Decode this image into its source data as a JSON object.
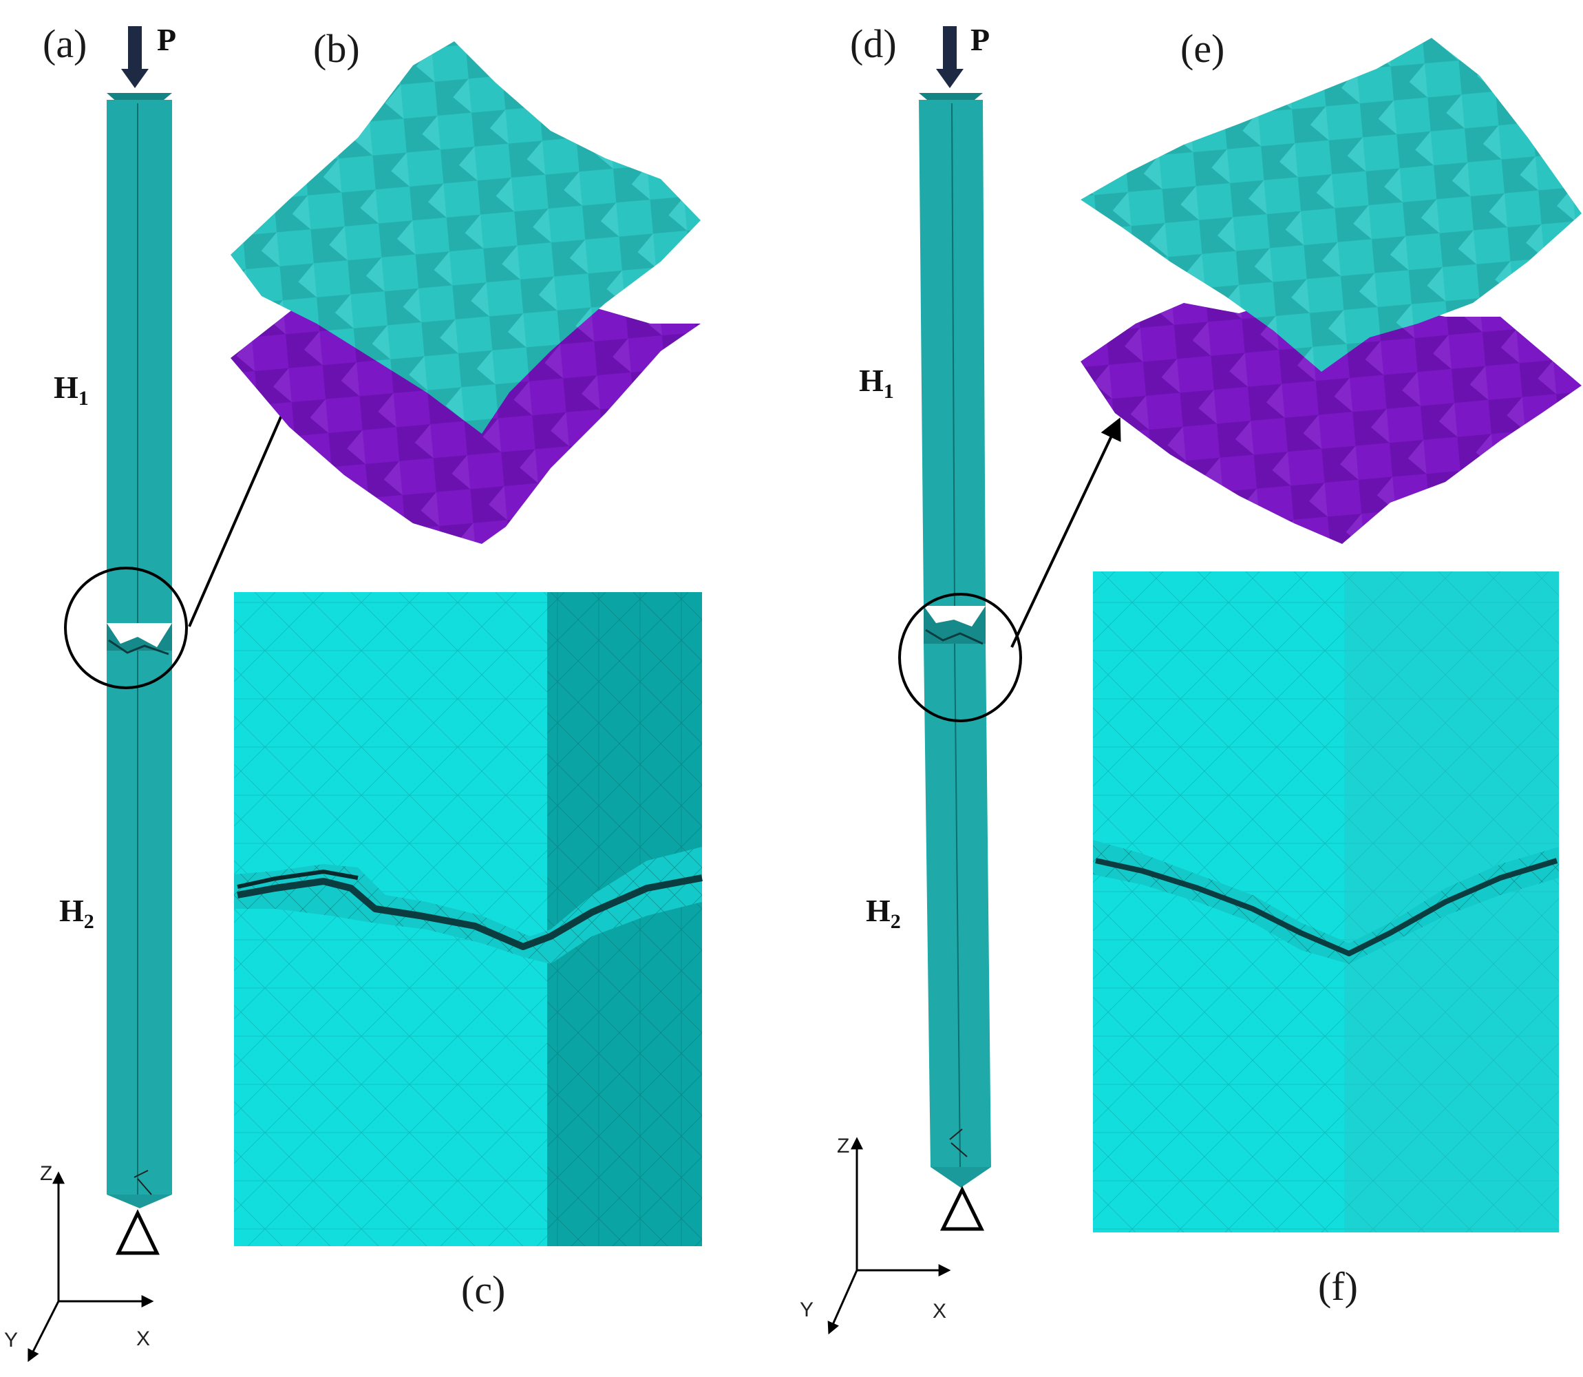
{
  "panels": {
    "a": {
      "label": "(a)",
      "load": "P",
      "h1": "H",
      "h1_sub": "1",
      "h2": "H",
      "h2_sub": "2"
    },
    "b": {
      "label": "(b)"
    },
    "c": {
      "label": "(c)"
    },
    "d": {
      "label": "(d)",
      "load": "P",
      "h1": "H",
      "h1_sub": "1",
      "h2": "H",
      "h2_sub": "2"
    },
    "e": {
      "label": "(e)"
    },
    "f": {
      "label": "(f)"
    }
  },
  "axes": {
    "z": "Z",
    "x": "X",
    "y": "Y"
  },
  "colors": {
    "column": "#1fa9a9",
    "column_shadow": "#168a8a",
    "surface_top": "#2cc6c2",
    "surface_bottom": "#7a14c4",
    "mesh_light": "#12e0e0",
    "mesh_dark": "#0aa7a7",
    "crack": "#0b3d40",
    "outline": "#000000"
  }
}
